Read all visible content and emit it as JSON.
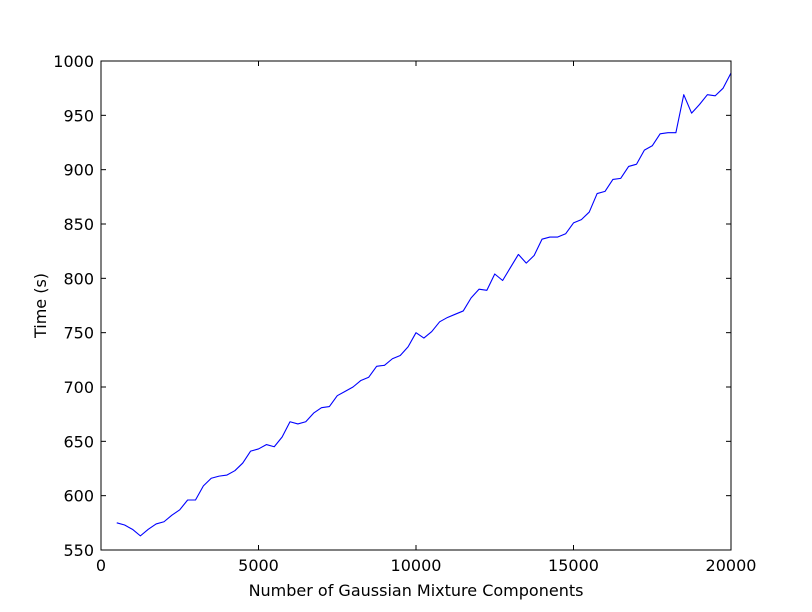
{
  "chart_data": {
    "type": "line",
    "title": "",
    "xlabel": "Number of Gaussian Mixture Components",
    "ylabel": "Time (s)",
    "xlim": [
      0,
      20000
    ],
    "ylim": [
      550,
      1000
    ],
    "xticks": [
      0,
      5000,
      10000,
      15000,
      20000
    ],
    "yticks": [
      550,
      600,
      650,
      700,
      750,
      800,
      850,
      900,
      950,
      1000
    ],
    "grid": false,
    "legend": "none",
    "series": [
      {
        "color": "#0000ff",
        "x": [
          500,
          750,
          1000,
          1250,
          1500,
          1750,
          2000,
          2250,
          2500,
          2750,
          3000,
          3250,
          3500,
          3750,
          4000,
          4250,
          4500,
          4750,
          5000,
          5250,
          5500,
          5750,
          6000,
          6250,
          6500,
          6750,
          7000,
          7250,
          7500,
          7750,
          8000,
          8250,
          8500,
          8750,
          9000,
          9250,
          9500,
          9750,
          10000,
          10250,
          10500,
          10750,
          11000,
          11250,
          11500,
          11750,
          12000,
          12250,
          12500,
          12750,
          13000,
          13250,
          13500,
          13750,
          14000,
          14250,
          14500,
          14750,
          15000,
          15250,
          15500,
          15750,
          16000,
          16250,
          16500,
          16750,
          17000,
          17250,
          17500,
          17750,
          18000,
          18250,
          18500,
          18750,
          19000,
          19250,
          19500,
          19750,
          20000
        ],
        "y": [
          575,
          573,
          569,
          563,
          569,
          574,
          576,
          582,
          587,
          596,
          596,
          609,
          616,
          618,
          619,
          623,
          630,
          641,
          643,
          647,
          645,
          654,
          668,
          666,
          668,
          676,
          681,
          682,
          692,
          696,
          700,
          706,
          709,
          719,
          720,
          726,
          729,
          737,
          750,
          745,
          751,
          760,
          764,
          767,
          770,
          782,
          790,
          789,
          804,
          798,
          810,
          822,
          814,
          821,
          836,
          838,
          838,
          841,
          851,
          854,
          861,
          878,
          880,
          891,
          892,
          903,
          905,
          918,
          922,
          933,
          934,
          934,
          969,
          952,
          960,
          969,
          968,
          975,
          989
        ]
      }
    ]
  }
}
